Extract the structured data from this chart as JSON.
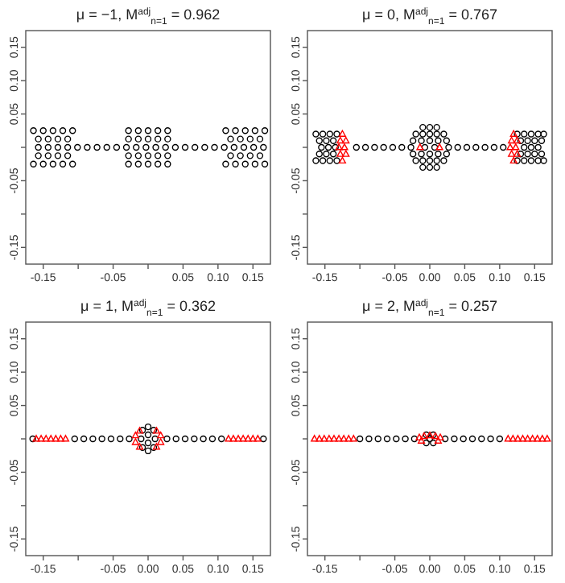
{
  "chart_data": [
    {
      "type": "scatter",
      "title": "μ = −1, M$^{adj}$$_{n=1}$ = 0.962",
      "xlim": [
        -0.175,
        0.175
      ],
      "ylim": [
        -0.175,
        0.175
      ],
      "xticks": [
        -0.15,
        {
          "value": -0.1,
          "label": null
        },
        -0.05,
        {
          "value": 0,
          "label": null
        },
        0.05,
        {
          "value": 0.1,
          "label": "0.10"
        },
        0.15
      ],
      "yticks": [
        -0.15,
        {
          "value": -0.1,
          "label": null
        },
        -0.05,
        {
          "value": 0,
          "label": null
        },
        0.05,
        {
          "value": 0.1,
          "label": "0.10"
        },
        0.15
      ],
      "series": [
        {
          "type": "scatter",
          "marker": "circle",
          "color": "#000000",
          "x": [
            -0.164,
            -0.15,
            -0.136,
            -0.122,
            -0.108,
            -0.028,
            -0.014,
            0,
            0.014,
            0.028,
            0.111,
            0.125,
            0.139,
            0.153,
            0.167,
            -0.157,
            -0.143,
            -0.129,
            -0.115,
            -0.028,
            -0.014,
            0,
            0.014,
            0.028,
            0.118,
            0.132,
            0.146,
            0.16,
            -0.157,
            -0.143,
            -0.129,
            -0.115,
            -0.101,
            -0.087,
            -0.073,
            -0.059,
            -0.045,
            -0.031,
            -0.017,
            -0.003,
            0.011,
            0.025,
            0.039,
            0.053,
            0.067,
            0.081,
            0.095,
            0.109,
            0.123,
            0.137,
            0.151,
            0.165,
            -0.157,
            -0.143,
            -0.129,
            -0.115,
            -0.028,
            -0.014,
            0,
            0.014,
            0.028,
            0.118,
            0.132,
            0.146,
            0.16,
            -0.164,
            -0.15,
            -0.136,
            -0.122,
            -0.108,
            -0.028,
            -0.014,
            0,
            0.014,
            0.028,
            0.111,
            0.125,
            0.139,
            0.153,
            0.167
          ],
          "values": [
            0.025,
            0.025,
            0.025,
            0.025,
            0.025,
            0.025,
            0.025,
            0.025,
            0.025,
            0.025,
            0.025,
            0.025,
            0.025,
            0.025,
            0.025,
            0.0125,
            0.0125,
            0.0125,
            0.0125,
            0.0125,
            0.0125,
            0.0125,
            0.0125,
            0.0125,
            0.0125,
            0.0125,
            0.0125,
            0.0125,
            0,
            0,
            0,
            0,
            0,
            0,
            0,
            0,
            0,
            0,
            0,
            0,
            0,
            0,
            0,
            0,
            0,
            0,
            0,
            0,
            0,
            0,
            0,
            0,
            -0.0125,
            -0.0125,
            -0.0125,
            -0.0125,
            -0.0125,
            -0.0125,
            -0.0125,
            -0.0125,
            -0.0125,
            -0.0125,
            -0.0125,
            -0.0125,
            -0.0125,
            -0.025,
            -0.025,
            -0.025,
            -0.025,
            -0.025,
            -0.025,
            -0.025,
            -0.025,
            -0.025,
            -0.025,
            -0.025,
            -0.025,
            -0.025,
            -0.025,
            -0.025
          ]
        }
      ]
    },
    {
      "type": "scatter",
      "title": "μ = 0, M$^{adj}$$_{n=1}$ = 0.767",
      "xlim": [
        -0.175,
        0.175
      ],
      "ylim": [
        -0.175,
        0.175
      ],
      "xticks": [
        -0.15,
        {
          "value": -0.1,
          "label": null
        },
        -0.05,
        {
          "value": 0,
          "label": "0.00"
        },
        0.05,
        {
          "value": 0.1,
          "label": "0.10"
        },
        0.15
      ],
      "yticks": [
        -0.15,
        {
          "value": -0.1,
          "label": null
        },
        -0.05,
        {
          "value": 0,
          "label": null
        },
        0.05,
        {
          "value": 0.1,
          "label": "0.10"
        },
        0.15
      ],
      "series": [
        {
          "type": "scatter",
          "marker": "circle",
          "color": "#000000",
          "x": [
            -0.163,
            -0.153,
            -0.143,
            -0.133,
            -0.02,
            -0.01,
            0,
            0.01,
            0.02,
            0.125,
            0.135,
            0.145,
            0.155,
            0.163,
            -0.158,
            -0.148,
            -0.138,
            -0.024,
            -0.012,
            0,
            0.012,
            0.024,
            0.13,
            0.14,
            0.15,
            0.16,
            -0.155,
            -0.145,
            -0.135,
            -0.105,
            -0.092,
            -0.079,
            -0.066,
            -0.053,
            -0.04,
            -0.027,
            -0.007,
            0.007,
            0.027,
            0.04,
            0.053,
            0.066,
            0.079,
            0.092,
            0.105,
            0.135,
            0.145,
            0.155,
            -0.158,
            -0.148,
            -0.138,
            -0.024,
            -0.012,
            0,
            0.012,
            0.024,
            0.13,
            0.14,
            0.15,
            0.16,
            -0.163,
            -0.153,
            -0.143,
            -0.133,
            -0.02,
            -0.01,
            0,
            0.01,
            0.02,
            0.125,
            0.135,
            0.145,
            0.155,
            0.163,
            -0.01,
            0,
            0.01,
            -0.01,
            0,
            0.01
          ],
          "values": [
            0.02,
            0.02,
            0.02,
            0.02,
            0.02,
            0.02,
            0.02,
            0.02,
            0.02,
            0.02,
            0.02,
            0.02,
            0.02,
            0.02,
            0.01,
            0.01,
            0.01,
            0.01,
            0.01,
            0.01,
            0.01,
            0.01,
            0.01,
            0.01,
            0.01,
            0.01,
            0,
            0,
            0,
            0,
            0,
            0,
            0,
            0,
            0,
            0,
            0,
            0,
            0,
            0,
            0,
            0,
            0,
            0,
            0,
            0,
            0,
            0,
            -0.01,
            -0.01,
            -0.01,
            -0.01,
            -0.01,
            -0.01,
            -0.01,
            -0.01,
            -0.01,
            -0.01,
            -0.01,
            -0.01,
            -0.02,
            -0.02,
            -0.02,
            -0.02,
            -0.02,
            -0.02,
            -0.02,
            -0.02,
            -0.02,
            -0.02,
            -0.02,
            -0.02,
            -0.02,
            -0.02,
            0.03,
            0.03,
            0.03,
            -0.03,
            -0.03,
            -0.03
          ]
        },
        {
          "type": "scatter",
          "marker": "triangle",
          "color": "#ff0000",
          "x": [
            -0.125,
            -0.128,
            -0.12,
            -0.13,
            -0.122,
            -0.128,
            -0.12,
            -0.125,
            -0.014,
            0.014,
            0.12,
            0.117,
            0.125,
            0.115,
            0.123,
            0.117,
            0.125,
            0.12
          ],
          "values": [
            0.02,
            0.01,
            0.01,
            0,
            0,
            -0.01,
            -0.01,
            -0.02,
            0,
            0,
            0.02,
            0.01,
            0.01,
            0,
            0,
            -0.01,
            -0.01,
            -0.02
          ]
        }
      ]
    },
    {
      "type": "scatter",
      "title": "μ = 1, M$^{adj}$$_{n=1}$ = 0.362",
      "xlim": [
        -0.175,
        0.175
      ],
      "ylim": [
        -0.175,
        0.175
      ],
      "xticks": [
        -0.15,
        {
          "value": -0.1,
          "label": null
        },
        -0.05,
        {
          "value": 0,
          "label": "0.00"
        },
        0.05,
        {
          "value": 0.1,
          "label": "0.10"
        },
        0.15
      ],
      "yticks": [
        -0.15,
        {
          "value": -0.1,
          "label": null
        },
        -0.05,
        {
          "value": 0,
          "label": null
        },
        0.05,
        {
          "value": 0.1,
          "label": "0.10"
        },
        0.15
      ],
      "series": [
        {
          "type": "scatter",
          "marker": "circle",
          "color": "#000000",
          "x": [
            -0.165,
            -0.105,
            -0.092,
            -0.079,
            -0.066,
            -0.053,
            -0.04,
            -0.027,
            0.027,
            0.04,
            0.053,
            0.066,
            0.079,
            0.092,
            0.105,
            0.165,
            -0.008,
            0.008,
            0,
            -0.01,
            0.01,
            0,
            -0.008,
            0.008,
            0,
            0
          ],
          "values": [
            0,
            0,
            0,
            0,
            0,
            0,
            0,
            0,
            0,
            0,
            0,
            0,
            0,
            0,
            0,
            0,
            0.013,
            0.013,
            0.006,
            0,
            0,
            -0.006,
            -0.013,
            -0.013,
            0.018,
            -0.018
          ]
        },
        {
          "type": "scatter",
          "marker": "triangle",
          "color": "#ff0000",
          "x": [
            -0.16,
            -0.153,
            -0.146,
            -0.139,
            -0.132,
            -0.125,
            -0.118,
            0.115,
            0.122,
            0.129,
            0.136,
            0.143,
            0.15,
            0.157,
            -0.018,
            -0.018,
            0.018,
            0.018,
            -0.012,
            0.012,
            -0.012,
            0.012
          ],
          "values": [
            0,
            0,
            0,
            0,
            0,
            0,
            0,
            0,
            0,
            0,
            0,
            0,
            0,
            0,
            0.005,
            -0.005,
            0.005,
            -0.005,
            0.012,
            0.012,
            -0.012,
            -0.012
          ]
        }
      ]
    },
    {
      "type": "scatter",
      "title": "μ = 2, M$^{adj}$$_{n=1}$ = 0.257",
      "xlim": [
        -0.175,
        0.175
      ],
      "ylim": [
        -0.175,
        0.175
      ],
      "xticks": [
        -0.15,
        {
          "value": -0.1,
          "label": null
        },
        -0.05,
        {
          "value": 0,
          "label": "0.00"
        },
        0.05,
        {
          "value": 0.1,
          "label": "0.10"
        },
        0.15
      ],
      "yticks": [
        -0.15,
        {
          "value": -0.1,
          "label": null
        },
        -0.05,
        {
          "value": 0,
          "label": null
        },
        0.05,
        {
          "value": 0.1,
          "label": "0.10"
        },
        0.15
      ],
      "series": [
        {
          "type": "scatter",
          "marker": "circle",
          "color": "#000000",
          "x": [
            -0.1,
            -0.087,
            -0.074,
            -0.061,
            -0.048,
            -0.035,
            -0.022,
            0.022,
            0.035,
            0.048,
            0.061,
            0.074,
            0.087,
            0.1,
            -0.005,
            0.005,
            0,
            -0.005,
            0.005
          ],
          "values": [
            0,
            0,
            0,
            0,
            0,
            0,
            0,
            0,
            0,
            0,
            0,
            0,
            0,
            0,
            0.006,
            0.006,
            0,
            -0.006,
            -0.006
          ]
        },
        {
          "type": "scatter",
          "marker": "triangle",
          "color": "#ff0000",
          "x": [
            -0.165,
            -0.158,
            -0.151,
            -0.144,
            -0.137,
            -0.13,
            -0.123,
            -0.116,
            -0.109,
            0.112,
            0.119,
            0.126,
            0.133,
            0.14,
            0.147,
            0.154,
            0.161,
            0.168,
            -0.015,
            -0.008,
            0,
            0.008,
            0.015,
            -0.012,
            0.012
          ],
          "values": [
            0,
            0,
            0,
            0,
            0,
            0,
            0,
            0,
            0,
            0,
            0,
            0,
            0,
            0,
            0,
            0,
            0,
            0,
            0.002,
            0.004,
            0.005,
            0.004,
            0.002,
            -0.003,
            -0.003
          ]
        }
      ]
    }
  ]
}
